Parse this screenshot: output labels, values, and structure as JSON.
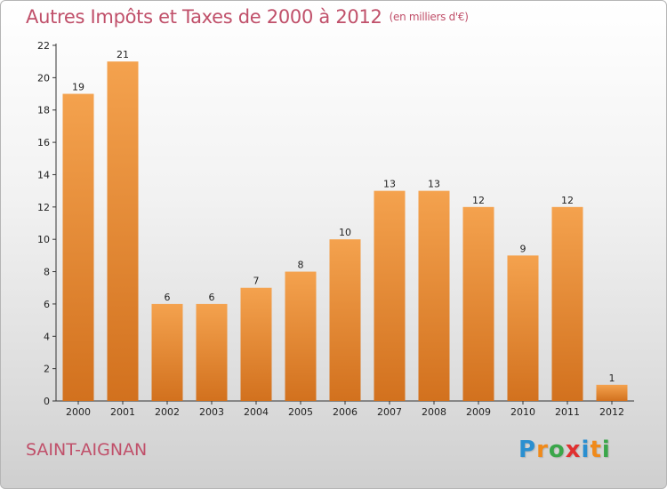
{
  "chart_data": {
    "type": "bar",
    "title": "Autres Impôts et Taxes de 2000 à 2012",
    "subtitle": "(en milliers d'€)",
    "xlabel": "",
    "ylabel": "",
    "categories": [
      "2000",
      "2001",
      "2002",
      "2003",
      "2004",
      "2005",
      "2006",
      "2007",
      "2008",
      "2009",
      "2010",
      "2011",
      "2012"
    ],
    "values": [
      19,
      21,
      6,
      6,
      7,
      8,
      10,
      13,
      13,
      12,
      9,
      12,
      1
    ],
    "ylim": [
      0,
      22
    ],
    "yticks": [
      0,
      2,
      4,
      6,
      8,
      10,
      12,
      14,
      16,
      18,
      20,
      22
    ],
    "grid": false,
    "legend": "none",
    "bar_color": "#f4a24e",
    "bar_color_dark": "#d2711e"
  },
  "commune_name": "SAINT-AIGNAN",
  "brand": {
    "letters": [
      "P",
      "r",
      "o",
      "x",
      "i",
      "t",
      "i"
    ],
    "colors": [
      "#2a8fd0",
      "#f08a1a",
      "#3aa64a",
      "#e03030",
      "#2a8fd0",
      "#f08a1a",
      "#3aa64a"
    ]
  }
}
